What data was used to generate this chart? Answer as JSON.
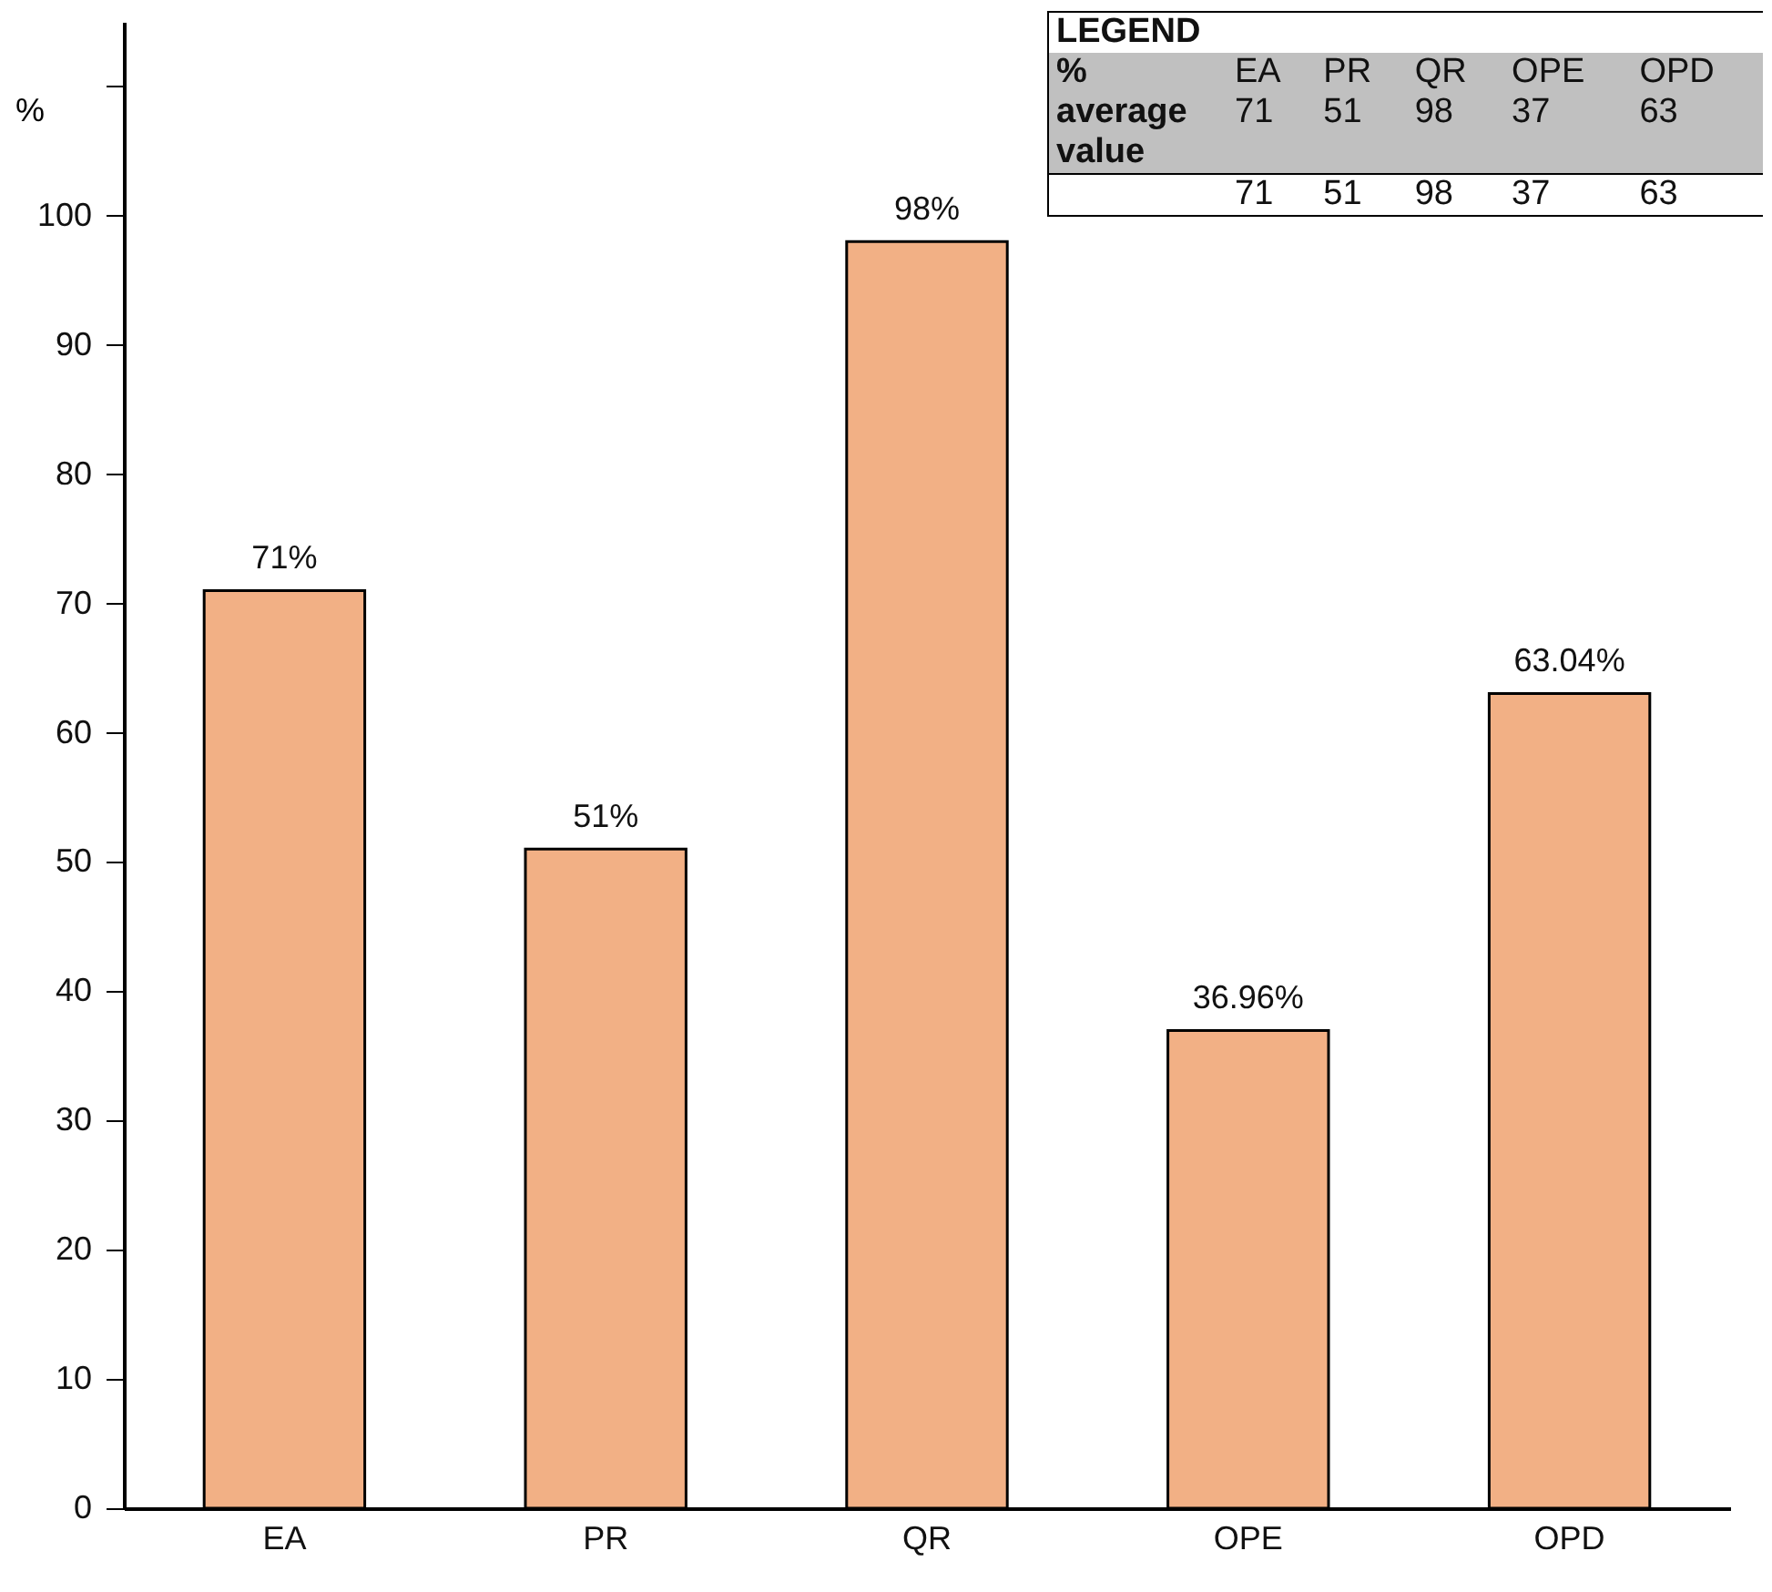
{
  "chart_data": {
    "type": "bar",
    "ylabel": "%",
    "categories": [
      "EA",
      "PR",
      "QR",
      "OPE",
      "OPD"
    ],
    "values": [
      71,
      51,
      98,
      36.96,
      63.04
    ],
    "value_labels": [
      "71%",
      "51%",
      "98%",
      "36.96%",
      "63.04%"
    ],
    "color": "#f2b085",
    "ylim": [
      0,
      115
    ],
    "yticks": [
      0,
      10,
      20,
      30,
      40,
      50,
      60,
      70,
      80,
      90,
      100,
      {
        "value": 110,
        "label": null
      }
    ],
    "grid": false,
    "annotations": [
      "LEGEND",
      "%",
      "EA",
      "PR",
      "QR",
      "OPE",
      "OPD",
      "average value",
      "71",
      "51",
      "98",
      "37",
      "63",
      "71",
      "51",
      "98",
      "37",
      "63"
    ]
  }
}
